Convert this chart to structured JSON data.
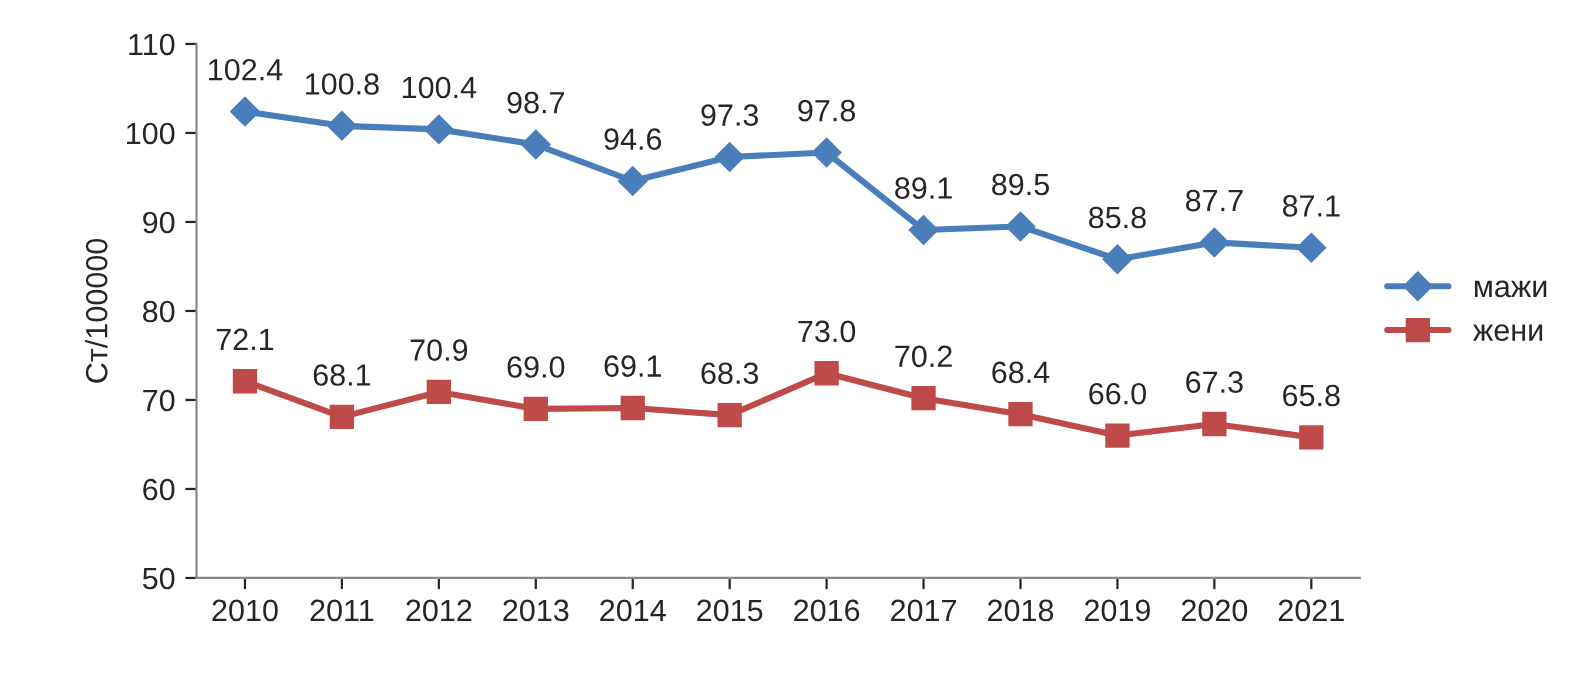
{
  "chart_data": {
    "type": "line",
    "ylabel": "Ст/100000",
    "categories": [
      "2010",
      "2011",
      "2012",
      "2013",
      "2014",
      "2015",
      "2016",
      "2017",
      "2018",
      "2019",
      "2020",
      "2021"
    ],
    "series": [
      {
        "name": "мажи",
        "color": "#4a7ebb",
        "marker": "diamond",
        "values": [
          102.4,
          100.8,
          100.4,
          98.7,
          94.6,
          97.3,
          97.8,
          89.1,
          89.5,
          85.8,
          87.7,
          87.1
        ],
        "value_labels": [
          "102.4",
          "100.8",
          "100.4",
          "98.7",
          "94.6",
          "97.3",
          "97.8",
          "89.1",
          "89.5",
          "85.8",
          "87.7",
          "87.1"
        ]
      },
      {
        "name": "жени",
        "color": "#be4b48",
        "marker": "square",
        "values": [
          72.1,
          68.1,
          70.9,
          69.0,
          69.1,
          68.3,
          73.0,
          70.2,
          68.4,
          66.0,
          67.3,
          65.8
        ],
        "value_labels": [
          "72.1",
          "68.1",
          "70.9",
          "69.0",
          "69.1",
          "68.3",
          "73.0",
          "70.2",
          "68.4",
          "66.0",
          "67.3",
          "65.8"
        ]
      }
    ],
    "ylim": [
      50,
      110
    ],
    "yticks": [
      50,
      60,
      70,
      80,
      90,
      100,
      110
    ],
    "grid": false,
    "legend": "right"
  }
}
